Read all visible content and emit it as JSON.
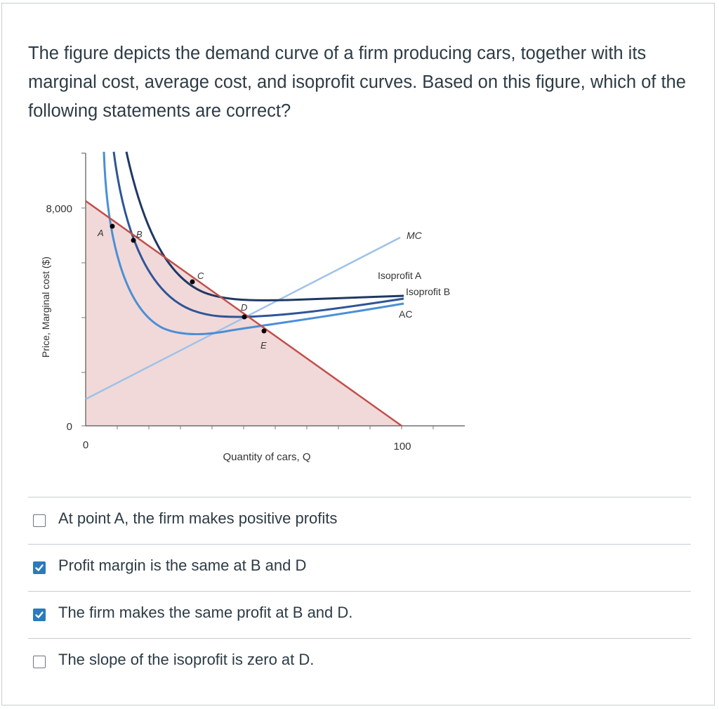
{
  "question": {
    "text": "The figure depicts the demand curve of a firm producing cars, together with its marginal cost, average cost, and isoprofit curves. Based on this figure, which of the following statements are correct?"
  },
  "figure": {
    "y_axis_label": "Price, Marginal cost ($)",
    "x_axis_label": "Quantity of cars, Q",
    "y_ticks": {
      "top": "8,000",
      "bottom": "0"
    },
    "x_ticks": {
      "left": "0",
      "right": "100"
    },
    "point_labels": {
      "a": "A",
      "b": "B",
      "c": "C",
      "d": "D",
      "e": "E"
    },
    "curve_labels": {
      "mc": "MC",
      "isoprofit_a": "Isoprofit A",
      "isoprofit_b": "Isoprofit B",
      "ac": "AC"
    },
    "colors": {
      "demand": "#c0504d",
      "mc": "#9fc2e7",
      "isoprofit_a": "#1f3864",
      "isoprofit_b": "#2e5597",
      "ac": "#4a8fd6",
      "surplus_fill": "#f1d9d9",
      "checkbox_checked": "#2b7abc"
    }
  },
  "answers": [
    {
      "label": "At point A, the firm makes positive profits",
      "checked": false
    },
    {
      "label": "Profit margin is the same at B and D",
      "checked": true
    },
    {
      "label": "The firm makes the same profit at B and D.",
      "checked": true
    },
    {
      "label": "The slope of the isoprofit is zero at D.",
      "checked": false
    }
  ]
}
